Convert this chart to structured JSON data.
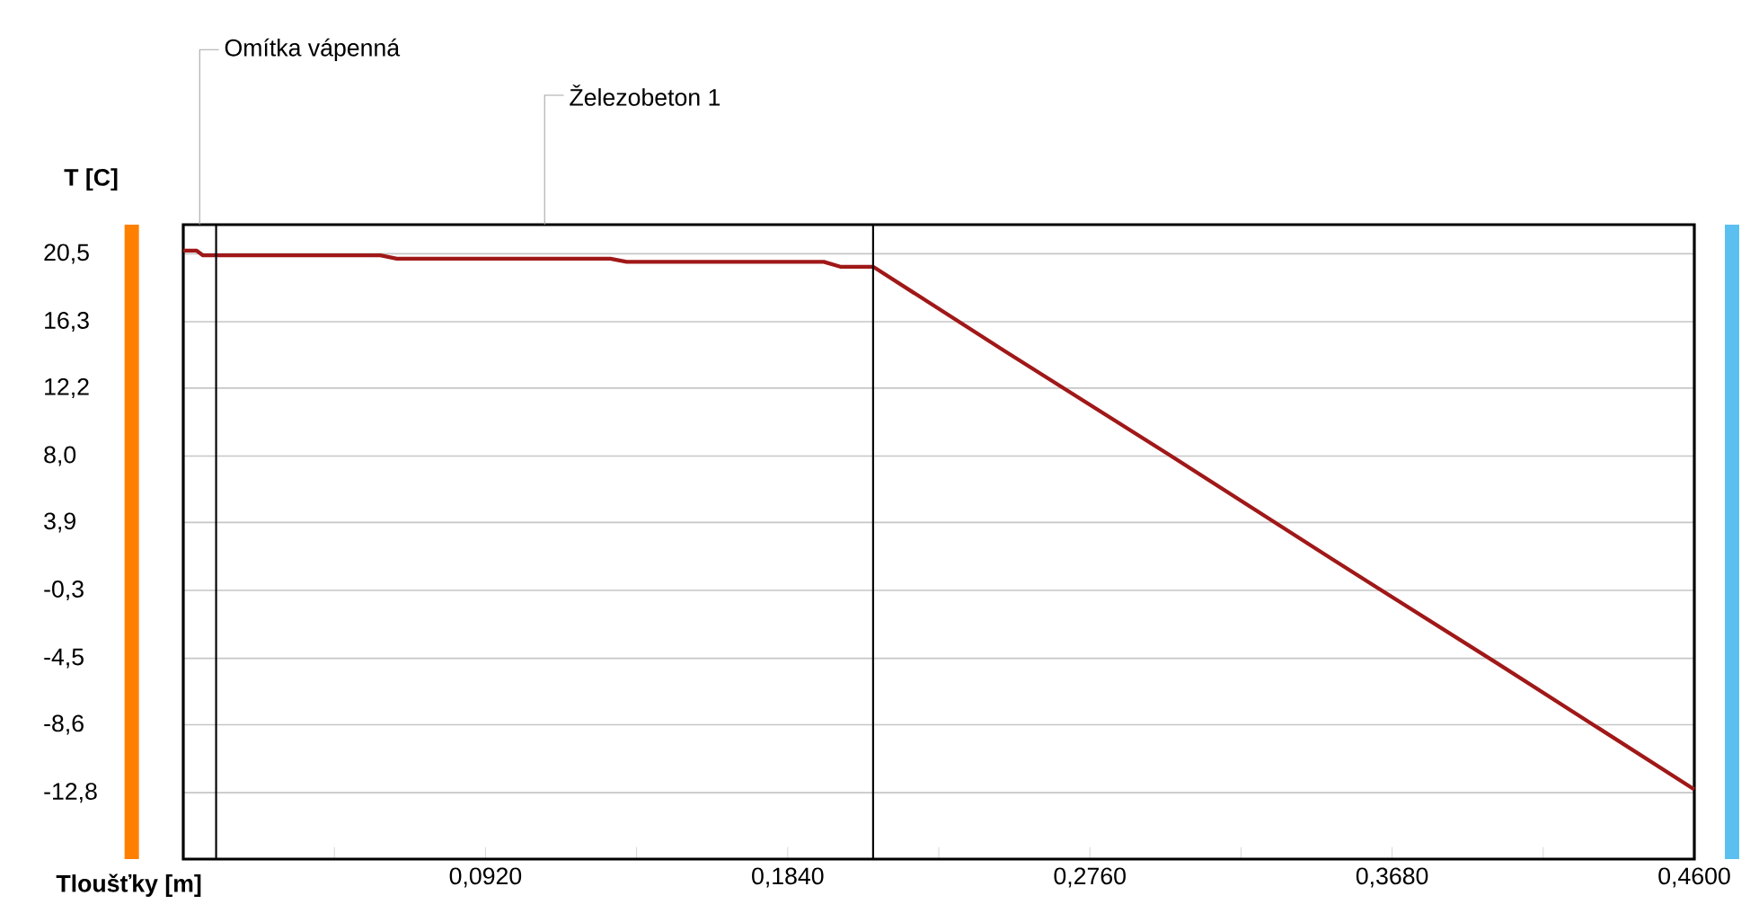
{
  "chart_data": {
    "type": "line",
    "xlabel": "Tloušťky [m]",
    "ylabel": "T [C]",
    "x": [
      0,
      0.004,
      0.006,
      0.06,
      0.065,
      0.13,
      0.135,
      0.195,
      0.2,
      0.21,
      0.25,
      0.3,
      0.35,
      0.4,
      0.46
    ],
    "series": [
      {
        "color": "#a01818",
        "values": [
          20.7,
          20.7,
          20.4,
          20.4,
          20.2,
          20.2,
          20.0,
          20.0,
          19.7,
          19.7,
          14.5,
          8.1,
          1.6,
          -4.8,
          -12.6
        ]
      }
    ],
    "xlim": [
      0,
      0.46
    ],
    "ylim": [
      -16.9,
      22.3
    ],
    "xticks": [
      {
        "value": 0.046,
        "label": null
      },
      {
        "value": 0.092,
        "label": "0,0920"
      },
      {
        "value": 0.138,
        "label": null
      },
      {
        "value": 0.184,
        "label": "0,1840"
      },
      {
        "value": 0.23,
        "label": null
      },
      {
        "value": 0.276,
        "label": "0,2760"
      },
      {
        "value": 0.322,
        "label": null
      },
      {
        "value": 0.368,
        "label": "0,3680"
      },
      {
        "value": 0.414,
        "label": null
      },
      {
        "value": 0.46,
        "label": "0,4600"
      }
    ],
    "yticks": [
      {
        "value": 20.5,
        "label": "20,5"
      },
      {
        "value": 16.3,
        "label": "16,3"
      },
      {
        "value": 12.2,
        "label": "12,2"
      },
      {
        "value": 8.0,
        "label": "8,0"
      },
      {
        "value": 3.9,
        "label": "3,9"
      },
      {
        "value": -0.3,
        "label": "-0,3"
      },
      {
        "value": -4.5,
        "label": "-4,5"
      },
      {
        "value": -8.6,
        "label": "-8,6"
      },
      {
        "value": -12.8,
        "label": "-12,8"
      }
    ],
    "ref_lines": [
      {
        "axis": "x",
        "value": 0.01,
        "color": "#000000"
      },
      {
        "axis": "x",
        "value": 0.21,
        "color": "#000000"
      }
    ],
    "annotations": [
      "Omítka vápenná",
      "Železobeton 1"
    ],
    "grid": "y",
    "marker": "none",
    "line_style": "solid"
  }
}
